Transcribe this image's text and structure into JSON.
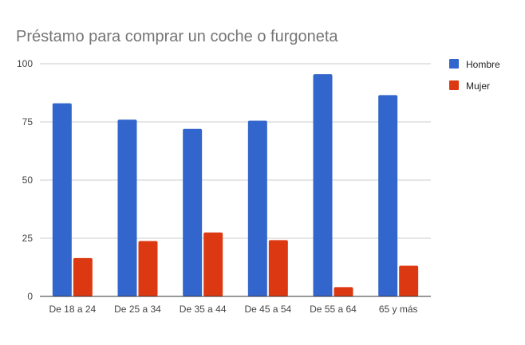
{
  "chart_data": {
    "type": "bar",
    "title": "Préstamo para comprar un coche o furgoneta",
    "xlabel": "",
    "ylabel": "",
    "categories": [
      "De 18 a 24",
      "De 25 a 34",
      "De 35 a 44",
      "De 45 a 54",
      "De 55 a 64",
      "65 y más"
    ],
    "series": [
      {
        "name": "Hombre",
        "color": "#3366cc",
        "values": [
          83,
          76,
          72,
          75.5,
          95.5,
          86.5
        ]
      },
      {
        "name": "Mujer",
        "color": "#dc3912",
        "values": [
          16.5,
          23.8,
          27.5,
          24.2,
          4,
          13.2
        ]
      }
    ],
    "ylim": [
      0,
      100
    ],
    "yticks": [
      0,
      25,
      50,
      75,
      100
    ],
    "grid": true,
    "legend_position": "right"
  }
}
